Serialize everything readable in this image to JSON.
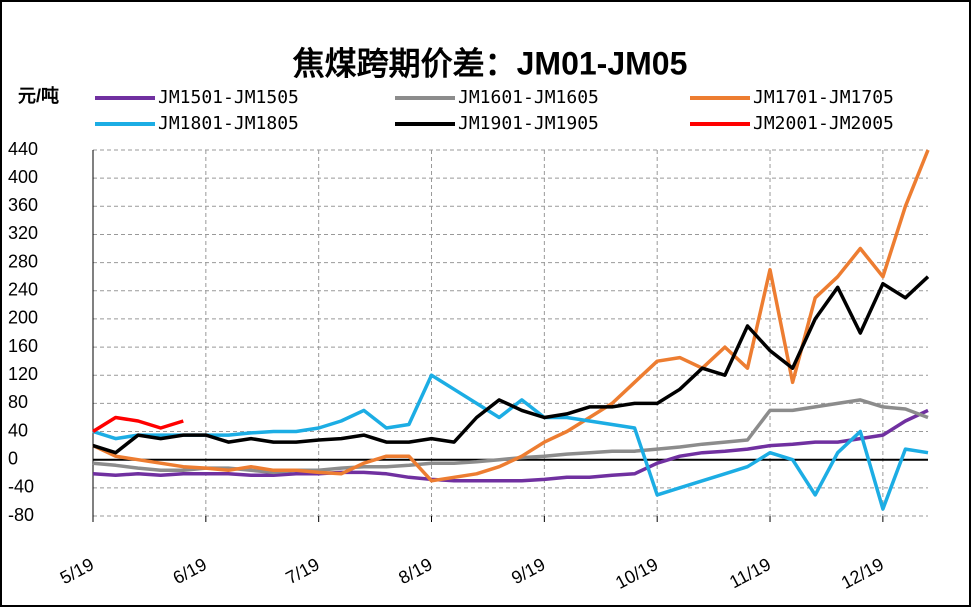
{
  "chart_data": {
    "type": "line",
    "title": "焦煤跨期价差：JM01-JM05",
    "y_label": "元/吨",
    "categories": [
      "5/19",
      null,
      null,
      null,
      null,
      "6/19",
      null,
      null,
      null,
      null,
      "7/19",
      null,
      null,
      null,
      null,
      "8/19",
      null,
      null,
      null,
      null,
      "9/19",
      null,
      null,
      null,
      null,
      "10/19",
      null,
      null,
      null,
      null,
      "11/19",
      null,
      null,
      null,
      null,
      "12/19",
      null,
      null
    ],
    "series": [
      {
        "name": "JM1501-JM1505",
        "color": "#7030a0",
        "values": [
          -20,
          -22,
          -20,
          -22,
          -20,
          -20,
          -20,
          -22,
          -22,
          -20,
          -20,
          -18,
          -18,
          -20,
          -25,
          -28,
          -30,
          -30,
          -30,
          -30,
          -28,
          -25,
          -25,
          -22,
          -20,
          -5,
          5,
          10,
          12,
          15,
          20,
          22,
          25,
          25,
          30,
          35,
          55,
          70
        ]
      },
      {
        "name": "JM1601-JM1605",
        "color": "#8c8c8c",
        "values": [
          -5,
          -8,
          -12,
          -15,
          -15,
          -12,
          -12,
          -15,
          -18,
          -15,
          -15,
          -12,
          -10,
          -10,
          -8,
          -5,
          -5,
          -3,
          0,
          3,
          5,
          8,
          10,
          12,
          12,
          15,
          18,
          22,
          25,
          28,
          70,
          70,
          75,
          80,
          85,
          75,
          72,
          60
        ]
      },
      {
        "name": "JM1701-JM1705",
        "color": "#ed7d31",
        "values": [
          20,
          5,
          0,
          -5,
          -10,
          -12,
          -15,
          -10,
          -15,
          -15,
          -18,
          -20,
          -5,
          5,
          5,
          -30,
          -25,
          -20,
          -10,
          5,
          25,
          40,
          60,
          80,
          110,
          140,
          145,
          130,
          160,
          130,
          270,
          110,
          230,
          260,
          300,
          260,
          360,
          440
        ]
      },
      {
        "name": "JM1801-JM1805",
        "color": "#1cade4",
        "values": [
          40,
          30,
          35,
          35,
          35,
          35,
          35,
          38,
          40,
          40,
          45,
          55,
          70,
          45,
          50,
          120,
          100,
          80,
          60,
          85,
          60,
          60,
          55,
          50,
          45,
          -50,
          -40,
          -30,
          -20,
          -10,
          10,
          0,
          -50,
          10,
          40,
          -70,
          15,
          10
        ]
      },
      {
        "name": "JM1901-JM1905",
        "color": "#000000",
        "values": [
          20,
          10,
          35,
          30,
          35,
          35,
          25,
          30,
          25,
          25,
          28,
          30,
          35,
          25,
          25,
          30,
          25,
          60,
          85,
          70,
          60,
          65,
          75,
          75,
          80,
          80,
          100,
          130,
          120,
          190,
          155,
          130,
          200,
          245,
          180,
          250,
          230,
          260
        ]
      },
      {
        "name": "JM2001-JM2005",
        "color": "#ff0000",
        "values": [
          40,
          60,
          55,
          45,
          55,
          null,
          null,
          null,
          null,
          null,
          null,
          null,
          null,
          null,
          null,
          null,
          null,
          null,
          null,
          null,
          null,
          null,
          null,
          null,
          null,
          null,
          null,
          null,
          null,
          null,
          null,
          null,
          null,
          null,
          null,
          null,
          null,
          null
        ]
      }
    ],
    "ylim": [
      -80,
      440
    ],
    "yticks": [
      -80,
      -40,
      0,
      40,
      80,
      120,
      160,
      200,
      240,
      280,
      320,
      360,
      400,
      440
    ],
    "grid": true
  }
}
